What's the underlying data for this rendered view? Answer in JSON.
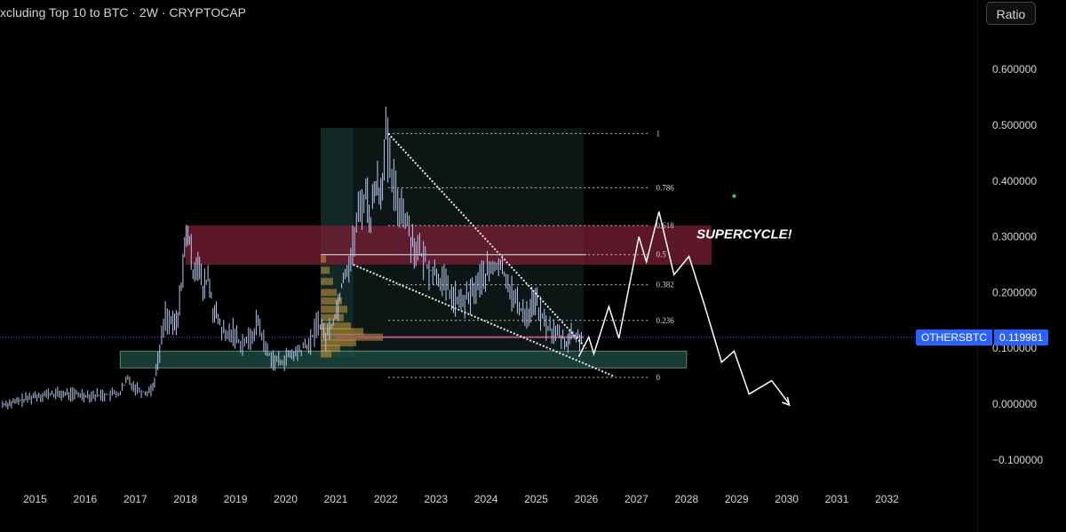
{
  "header": {
    "title": "xcluding Top 10 to BTC · 2W · CRYPTOCAP"
  },
  "toolbar": {
    "ratio_label": "Ratio"
  },
  "price_tag": {
    "symbol": "OTHERSBTC",
    "value": "0.119981"
  },
  "colors": {
    "background": "#000000",
    "candles": "#b8c7f0",
    "resistance_zone": "#7a1f36",
    "support_zone": "#1f4a40",
    "price_line": "#2962ff",
    "text": "#d1d4dc",
    "projection": "#ffffff"
  },
  "chart_data": {
    "type": "line",
    "title": "xcluding Top 10 to BTC · 2W · CRYPTOCAP",
    "xlabel": "",
    "ylabel": "",
    "x_ticks": [
      "2015",
      "2016",
      "2017",
      "2018",
      "2019",
      "2020",
      "2021",
      "2022",
      "2023",
      "2024",
      "2025",
      "2026",
      "2027",
      "2028",
      "2029",
      "2030",
      "2031",
      "2032"
    ],
    "y_ticks": [
      "0.600000",
      "0.500000",
      "0.400000",
      "0.300000",
      "0.200000",
      "0.100000",
      "0.000000",
      "−0.100000"
    ],
    "ylim": [
      -0.12,
      0.72
    ],
    "xlim": [
      2014.3,
      2033.8
    ],
    "grid": false,
    "series": [
      {
        "values": [
          [
            2014.35,
            0.0
          ],
          [
            2014.6,
            0.003
          ],
          [
            2014.85,
            0.01
          ],
          [
            2015.0,
            0.015
          ],
          [
            2015.3,
            0.018
          ],
          [
            2015.6,
            0.018
          ],
          [
            2015.9,
            0.017
          ],
          [
            2016.2,
            0.016
          ],
          [
            2016.5,
            0.017
          ],
          [
            2016.7,
            0.02
          ],
          [
            2016.85,
            0.045
          ],
          [
            2017.0,
            0.03
          ],
          [
            2017.2,
            0.02
          ],
          [
            2017.35,
            0.03
          ],
          [
            2017.45,
            0.075
          ],
          [
            2017.6,
            0.16
          ],
          [
            2017.75,
            0.14
          ],
          [
            2017.85,
            0.15
          ],
          [
            2017.95,
            0.25
          ],
          [
            2018.05,
            0.31
          ],
          [
            2018.15,
            0.24
          ],
          [
            2018.25,
            0.26
          ],
          [
            2018.35,
            0.2
          ],
          [
            2018.45,
            0.23
          ],
          [
            2018.55,
            0.17
          ],
          [
            2018.65,
            0.15
          ],
          [
            2018.8,
            0.12
          ],
          [
            2018.95,
            0.13
          ],
          [
            2019.1,
            0.11
          ],
          [
            2019.3,
            0.115
          ],
          [
            2019.45,
            0.15
          ],
          [
            2019.6,
            0.1
          ],
          [
            2019.75,
            0.08
          ],
          [
            2019.9,
            0.075
          ],
          [
            2020.05,
            0.085
          ],
          [
            2020.2,
            0.09
          ],
          [
            2020.35,
            0.1
          ],
          [
            2020.5,
            0.11
          ],
          [
            2020.65,
            0.15
          ],
          [
            2020.8,
            0.12
          ],
          [
            2020.95,
            0.15
          ],
          [
            2021.05,
            0.18
          ],
          [
            2021.15,
            0.23
          ],
          [
            2021.3,
            0.26
          ],
          [
            2021.45,
            0.34
          ],
          [
            2021.6,
            0.38
          ],
          [
            2021.7,
            0.33
          ],
          [
            2021.8,
            0.4
          ],
          [
            2021.9,
            0.38
          ],
          [
            2022.0,
            0.48
          ],
          [
            2022.08,
            0.42
          ],
          [
            2022.2,
            0.37
          ],
          [
            2022.35,
            0.35
          ],
          [
            2022.5,
            0.3
          ],
          [
            2022.6,
            0.28
          ],
          [
            2022.75,
            0.26
          ],
          [
            2022.9,
            0.24
          ],
          [
            2023.05,
            0.23
          ],
          [
            2023.2,
            0.21
          ],
          [
            2023.35,
            0.19
          ],
          [
            2023.5,
            0.18
          ],
          [
            2023.65,
            0.19
          ],
          [
            2023.8,
            0.21
          ],
          [
            2023.95,
            0.23
          ],
          [
            2024.1,
            0.24
          ],
          [
            2024.25,
            0.25
          ],
          [
            2024.4,
            0.23
          ],
          [
            2024.55,
            0.19
          ],
          [
            2024.7,
            0.17
          ],
          [
            2024.85,
            0.16
          ],
          [
            2024.95,
            0.19
          ],
          [
            2025.05,
            0.17
          ],
          [
            2025.2,
            0.14
          ],
          [
            2025.35,
            0.13
          ],
          [
            2025.5,
            0.12
          ],
          [
            2025.6,
            0.11
          ],
          [
            2025.7,
            0.125
          ],
          [
            2025.8,
            0.118
          ],
          [
            2025.9,
            0.12
          ]
        ]
      }
    ],
    "resistance_zone": {
      "y_low": 0.25,
      "y_high": 0.32,
      "x_start": 2018.0,
      "x_end": 2028.5
    },
    "support_zone": {
      "y_low": 0.065,
      "y_high": 0.095,
      "x_start": 2016.7,
      "x_end": 2028.0
    },
    "volume_range_box": {
      "x_start": 2020.7,
      "x_end": 2025.95,
      "y_low": 0.085,
      "y_high": 0.495
    },
    "fibonacci": {
      "x_start": 2022.05,
      "x_end": 2027.25,
      "levels": [
        {
          "label": "1",
          "value": 0.485
        },
        {
          "label": "0.786",
          "value": 0.388
        },
        {
          "label": "0.618",
          "value": 0.32
        },
        {
          "label": "0.5",
          "value": 0.268
        },
        {
          "label": "0.382",
          "value": 0.214
        },
        {
          "label": "0.236",
          "value": 0.15
        },
        {
          "label": "0",
          "value": 0.048
        }
      ]
    },
    "trendlines": [
      {
        "points": [
          [
            2022.05,
            0.485
          ],
          [
            2026.0,
            0.1
          ]
        ]
      },
      {
        "points": [
          [
            2021.35,
            0.25
          ],
          [
            2026.55,
            0.05
          ]
        ]
      }
    ],
    "horizontal_lines": [
      {
        "value": 0.268,
        "x_start": 2020.7,
        "x_end": 2026.0
      },
      {
        "value": 0.12,
        "x_start": 2021.0,
        "x_end": 2025.95
      }
    ],
    "projection": {
      "points": [
        [
          2025.85,
          0.085
        ],
        [
          2026.05,
          0.12
        ],
        [
          2026.15,
          0.09
        ],
        [
          2026.45,
          0.175
        ],
        [
          2026.65,
          0.118
        ],
        [
          2027.05,
          0.3
        ],
        [
          2027.2,
          0.255
        ],
        [
          2027.45,
          0.345
        ],
        [
          2027.75,
          0.232
        ],
        [
          2028.05,
          0.265
        ],
        [
          2028.35,
          0.18
        ],
        [
          2028.7,
          0.075
        ],
        [
          2028.95,
          0.095
        ],
        [
          2029.25,
          0.018
        ],
        [
          2029.7,
          0.042
        ],
        [
          2030.05,
          0.0
        ]
      ]
    },
    "annotation": {
      "text": "SUPERCYCLE!",
      "x": 2028.2,
      "y": 0.305
    },
    "marker": {
      "x": 2028.95,
      "y": 0.373
    },
    "current_price": {
      "value": 0.119981
    }
  }
}
